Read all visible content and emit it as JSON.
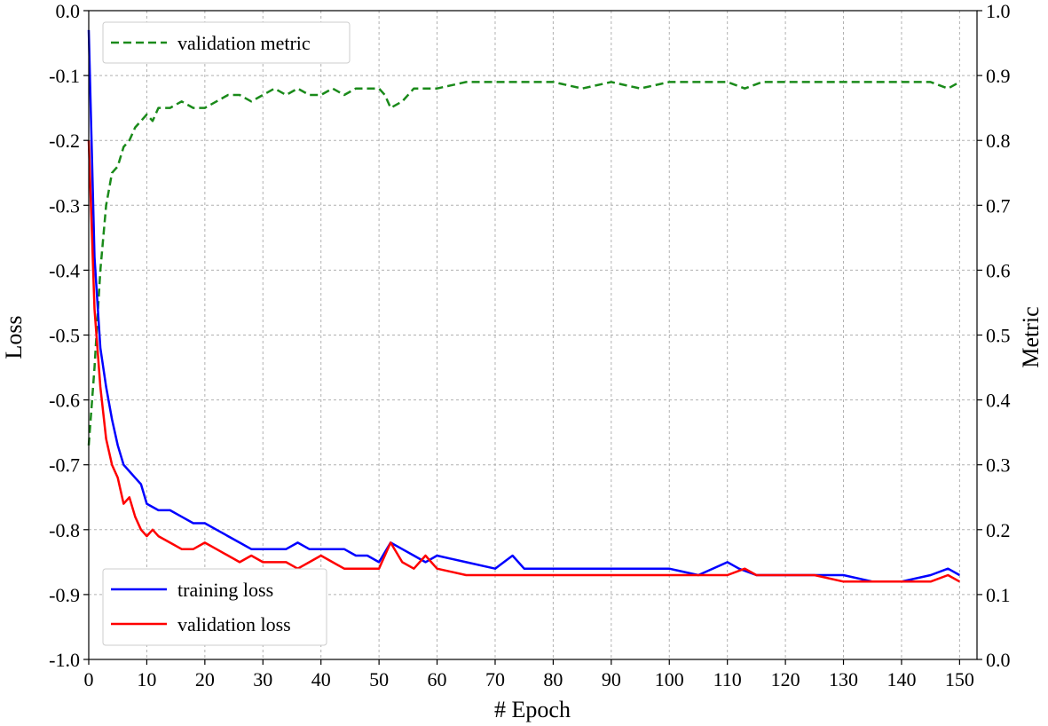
{
  "chart_data": {
    "type": "line",
    "xlabel": "# Epoch",
    "ylabel_left": "Loss",
    "ylabel_right": "Metric",
    "xlim": [
      0,
      153
    ],
    "ylim_left": [
      -1.0,
      0.0
    ],
    "ylim_right": [
      0.0,
      1.0
    ],
    "xticks": [
      "0",
      "10",
      "20",
      "30",
      "40",
      "50",
      "60",
      "70",
      "80",
      "90",
      "100",
      "110",
      "120",
      "130",
      "140",
      "150"
    ],
    "yticks_left": [
      "-1.0",
      "-0.9",
      "-0.8",
      "-0.7",
      "-0.6",
      "-0.5",
      "-0.4",
      "-0.3",
      "-0.2",
      "-0.1",
      "0.0"
    ],
    "yticks_right": [
      "0.0",
      "0.1",
      "0.2",
      "0.3",
      "0.4",
      "0.5",
      "0.6",
      "0.7",
      "0.8",
      "0.9",
      "1.0"
    ],
    "grid": true,
    "series": [
      {
        "name": "validation metric",
        "axis": "right",
        "color": "#1a8a1a",
        "style": "dashed",
        "legend": "top-left",
        "x": [
          0,
          1,
          2,
          3,
          4,
          5,
          6,
          7,
          8,
          9,
          10,
          11,
          12,
          14,
          16,
          18,
          20,
          22,
          24,
          26,
          28,
          30,
          32,
          34,
          36,
          38,
          40,
          42,
          44,
          46,
          48,
          50,
          51,
          52,
          54,
          56,
          58,
          60,
          65,
          70,
          75,
          80,
          85,
          90,
          95,
          100,
          105,
          110,
          113,
          116,
          120,
          125,
          130,
          135,
          140,
          145,
          148,
          150
        ],
        "y": [
          0.33,
          0.45,
          0.6,
          0.7,
          0.75,
          0.76,
          0.79,
          0.8,
          0.82,
          0.83,
          0.84,
          0.83,
          0.85,
          0.85,
          0.86,
          0.85,
          0.85,
          0.86,
          0.87,
          0.87,
          0.86,
          0.87,
          0.88,
          0.87,
          0.88,
          0.87,
          0.87,
          0.88,
          0.87,
          0.88,
          0.88,
          0.88,
          0.87,
          0.85,
          0.86,
          0.88,
          0.88,
          0.88,
          0.89,
          0.89,
          0.89,
          0.89,
          0.88,
          0.89,
          0.88,
          0.89,
          0.89,
          0.89,
          0.88,
          0.89,
          0.89,
          0.89,
          0.89,
          0.89,
          0.89,
          0.89,
          0.88,
          0.89
        ]
      },
      {
        "name": "training loss",
        "axis": "left",
        "color": "#0000ff",
        "style": "solid",
        "legend": "bottom-left",
        "x": [
          0,
          1,
          2,
          3,
          4,
          5,
          6,
          7,
          8,
          9,
          10,
          12,
          14,
          16,
          18,
          20,
          22,
          24,
          26,
          28,
          30,
          32,
          34,
          36,
          38,
          40,
          42,
          44,
          46,
          48,
          50,
          52,
          54,
          56,
          58,
          60,
          65,
          70,
          73,
          75,
          80,
          85,
          90,
          95,
          100,
          105,
          110,
          112,
          115,
          120,
          125,
          130,
          135,
          140,
          145,
          148,
          150
        ],
        "y": [
          -0.03,
          -0.38,
          -0.52,
          -0.58,
          -0.63,
          -0.67,
          -0.7,
          -0.71,
          -0.72,
          -0.73,
          -0.76,
          -0.77,
          -0.77,
          -0.78,
          -0.79,
          -0.79,
          -0.8,
          -0.81,
          -0.82,
          -0.83,
          -0.83,
          -0.83,
          -0.83,
          -0.82,
          -0.83,
          -0.83,
          -0.83,
          -0.83,
          -0.84,
          -0.84,
          -0.85,
          -0.82,
          -0.83,
          -0.84,
          -0.85,
          -0.84,
          -0.85,
          -0.86,
          -0.84,
          -0.86,
          -0.86,
          -0.86,
          -0.86,
          -0.86,
          -0.86,
          -0.87,
          -0.85,
          -0.86,
          -0.87,
          -0.87,
          -0.87,
          -0.87,
          -0.88,
          -0.88,
          -0.87,
          -0.86,
          -0.87
        ]
      },
      {
        "name": "validation loss",
        "axis": "left",
        "color": "#ff0000",
        "style": "solid",
        "legend": "bottom-left",
        "x": [
          0,
          1,
          2,
          3,
          4,
          5,
          6,
          7,
          8,
          9,
          10,
          11,
          12,
          14,
          16,
          18,
          20,
          22,
          24,
          26,
          28,
          30,
          32,
          34,
          36,
          38,
          40,
          42,
          44,
          46,
          48,
          50,
          52,
          54,
          56,
          58,
          60,
          65,
          70,
          75,
          80,
          85,
          90,
          95,
          100,
          105,
          110,
          113,
          115,
          120,
          125,
          130,
          135,
          140,
          145,
          148,
          150
        ],
        "y": [
          -0.2,
          -0.46,
          -0.58,
          -0.66,
          -0.7,
          -0.72,
          -0.76,
          -0.75,
          -0.78,
          -0.8,
          -0.81,
          -0.8,
          -0.81,
          -0.82,
          -0.83,
          -0.83,
          -0.82,
          -0.83,
          -0.84,
          -0.85,
          -0.84,
          -0.85,
          -0.85,
          -0.85,
          -0.86,
          -0.85,
          -0.84,
          -0.85,
          -0.86,
          -0.86,
          -0.86,
          -0.86,
          -0.82,
          -0.85,
          -0.86,
          -0.84,
          -0.86,
          -0.87,
          -0.87,
          -0.87,
          -0.87,
          -0.87,
          -0.87,
          -0.87,
          -0.87,
          -0.87,
          -0.87,
          -0.86,
          -0.87,
          -0.87,
          -0.87,
          -0.88,
          -0.88,
          -0.88,
          -0.88,
          -0.87,
          -0.88
        ]
      }
    ]
  }
}
